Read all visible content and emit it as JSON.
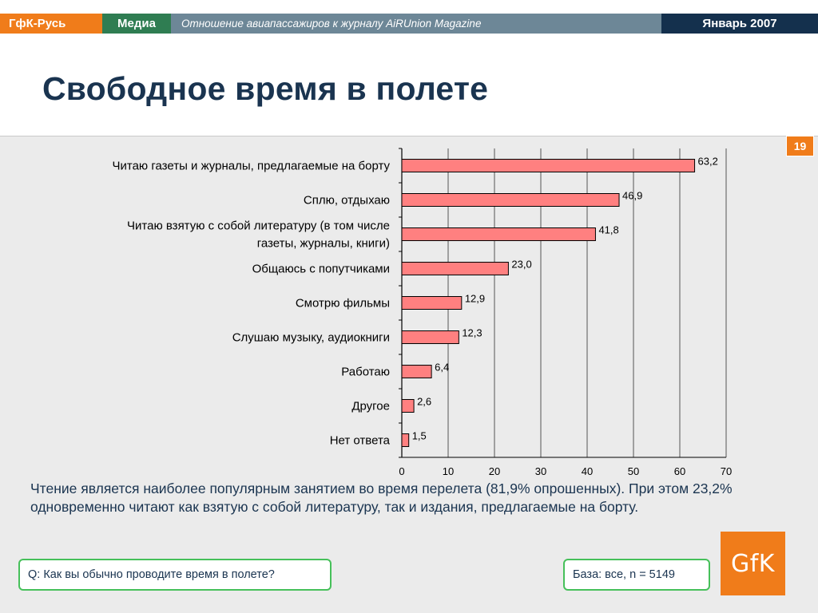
{
  "header": {
    "brand": "ГфК-Русь",
    "section": "Медиа",
    "subtitle": "Отношение авиапассажиров к журналу AiRUnion Magazine",
    "date": "Январь 2007"
  },
  "page_title": "Свободное время в полете",
  "slide_number": "19",
  "colors": {
    "brand_orange": "#f07c1a",
    "brand_green": "#2f7d52",
    "header_gray": "#6d8797",
    "header_navy": "#14304d",
    "bar_fill": "#ff8080",
    "box_border": "#46c05a"
  },
  "chart_data": {
    "type": "bar",
    "orientation": "horizontal",
    "categories": [
      "Читаю газеты и журналы, предлагаемые на борту",
      "Сплю, отдыхаю",
      "Читаю взятую с собой литературу (в том числе газеты, журналы, книги)",
      "Общаюсь с попутчиками",
      "Смотрю фильмы",
      "Слушаю музыку, аудиокниги",
      "Работаю",
      "Другое",
      "Нет ответа"
    ],
    "category_lines": [
      [
        "Читаю газеты и журналы, предлагаемые на борту"
      ],
      [
        "Сплю, отдыхаю"
      ],
      [
        "Читаю взятую с собой литературу (в том числе",
        "газеты, журналы, книги)"
      ],
      [
        "Общаюсь с попутчиками"
      ],
      [
        "Смотрю фильмы"
      ],
      [
        "Слушаю музыку, аудиокниги"
      ],
      [
        "Работаю"
      ],
      [
        "Другое"
      ],
      [
        "Нет ответа"
      ]
    ],
    "values": [
      63.2,
      46.9,
      41.8,
      23.0,
      12.9,
      12.3,
      6.4,
      2.6,
      1.5
    ],
    "value_labels": [
      "63,2",
      "46,9",
      "41,8",
      "23,0",
      "12,9",
      "12,3",
      "6,4",
      "2,6",
      "1,5"
    ],
    "xlim": [
      0,
      70
    ],
    "xticks": [
      0,
      10,
      20,
      30,
      40,
      50,
      60,
      70
    ],
    "grid": true,
    "legend": "none"
  },
  "note": "Чтение является наиболее популярным занятием во время перелета (81,9% опрошенных). При этом 23,2% одновременно читают как взятую с собой литературу, так и издания, предлагаемые на борту.",
  "question": "Q: Как вы обычно проводите время в полете?",
  "base": "База: все, n = 5149",
  "logo": "GfK"
}
